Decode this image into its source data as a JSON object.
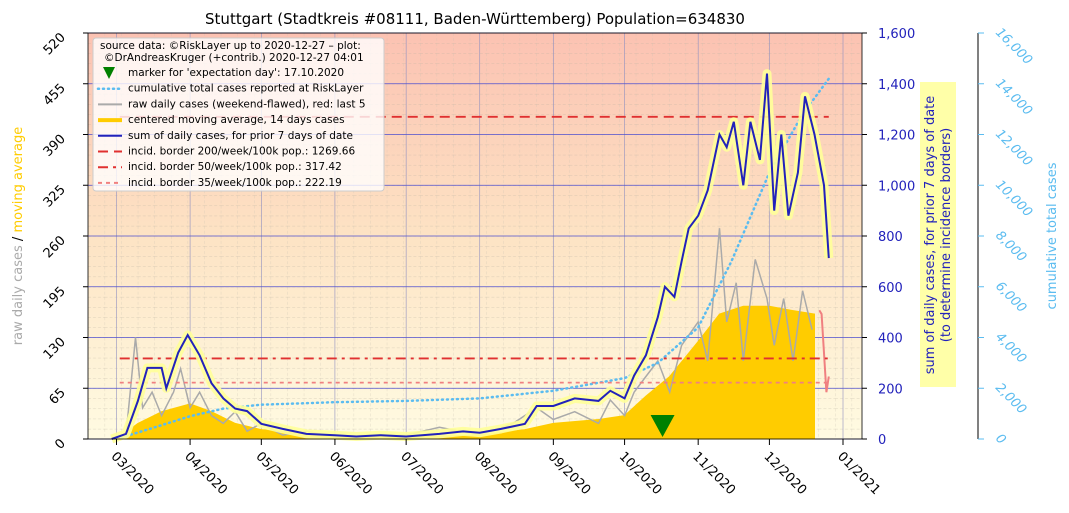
{
  "chart_data": {
    "type": "line",
    "title": "Stuttgart (Stadtkreis #08111, Baden-Württemberg) Population=634830",
    "source_text": [
      "source data: ©RiskLayer up to 2020-12-27 – plot:",
      "©DrAndreasKruger (+contrib.) 2020-12-27 04:01"
    ],
    "xlim": [
      "2020-02-18",
      "2021-01-09"
    ],
    "xticks": [
      {
        "value": "2020-03-01",
        "label": "03/2020"
      },
      {
        "value": "2020-04-01",
        "label": "04/2020"
      },
      {
        "value": "2020-05-01",
        "label": "05/2020"
      },
      {
        "value": "2020-06-01",
        "label": "06/2020"
      },
      {
        "value": "2020-07-01",
        "label": "07/2020"
      },
      {
        "value": "2020-08-01",
        "label": "08/2020"
      },
      {
        "value": "2020-09-01",
        "label": "09/2020"
      },
      {
        "value": "2020-10-01",
        "label": "10/2020"
      },
      {
        "value": "2020-11-01",
        "label": "11/2020"
      },
      {
        "value": "2020-12-01",
        "label": "12/2020"
      },
      {
        "value": "2021-01-01",
        "label": "01/2021"
      }
    ],
    "ylim": [
      0,
      520
    ],
    "yticks": [
      0,
      65,
      130,
      195,
      260,
      325,
      390,
      455,
      520
    ],
    "y2lim": [
      0,
      1600
    ],
    "y2ticks": [
      0,
      200,
      400,
      600,
      800,
      {
        "value": 1000,
        "label": "1,000"
      },
      {
        "value": 1200,
        "label": "1,200"
      },
      {
        "value": 1400,
        "label": "1,400"
      },
      {
        "value": 1600,
        "label": "1,600"
      }
    ],
    "y3lim": [
      0,
      16000
    ],
    "y3ticks": [
      0,
      {
        "value": 2000,
        "label": "2,000"
      },
      {
        "value": 4000,
        "label": "4,000"
      },
      {
        "value": 6000,
        "label": "6,000"
      },
      {
        "value": 8000,
        "label": "8,000"
      },
      {
        "value": 10000,
        "label": "10,000"
      },
      {
        "value": 12000,
        "label": "12,000"
      },
      {
        "value": 14000,
        "label": "14,000"
      },
      {
        "value": 16000,
        "label": "16,000"
      }
    ],
    "ylabel": [
      "raw daily cases",
      "/",
      "moving average"
    ],
    "y2label": [
      "sum of daily cases, for prior 7 days of date",
      "(to determine incidence borders)"
    ],
    "y3label": "cumulative total cases",
    "grid": true,
    "series": [
      {
        "name": "raw daily cases (weekend-flawed), red: last 5",
        "color": "#aaaaaa",
        "highlight_last": 5,
        "highlight_color": "#f08080",
        "axis": "y",
        "style": "line",
        "x": [
          "2020-03-01",
          "2020-03-05",
          "2020-03-09",
          "2020-03-12",
          "2020-03-16",
          "2020-03-20",
          "2020-03-25",
          "2020-03-28",
          "2020-04-01",
          "2020-04-05",
          "2020-04-10",
          "2020-04-15",
          "2020-04-20",
          "2020-04-25",
          "2020-05-01",
          "2020-05-10",
          "2020-05-20",
          "2020-06-01",
          "2020-06-15",
          "2020-07-01",
          "2020-07-15",
          "2020-08-01",
          "2020-08-15",
          "2020-08-25",
          "2020-09-01",
          "2020-09-10",
          "2020-09-20",
          "2020-09-25",
          "2020-10-01",
          "2020-10-05",
          "2020-10-10",
          "2020-10-15",
          "2020-10-20",
          "2020-10-25",
          "2020-11-01",
          "2020-11-05",
          "2020-11-10",
          "2020-11-13",
          "2020-11-17",
          "2020-11-20",
          "2020-11-25",
          "2020-11-30",
          "2020-12-03",
          "2020-12-07",
          "2020-12-11",
          "2020-12-15",
          "2020-12-19",
          "2020-12-22",
          "2020-12-23",
          "2020-12-24",
          "2020-12-25",
          "2020-12-26"
        ],
        "values": [
          2,
          5,
          130,
          40,
          60,
          30,
          60,
          90,
          40,
          60,
          30,
          20,
          35,
          10,
          20,
          5,
          10,
          3,
          5,
          5,
          15,
          5,
          20,
          40,
          25,
          35,
          20,
          50,
          30,
          60,
          80,
          100,
          60,
          120,
          150,
          100,
          270,
          150,
          200,
          100,
          230,
          180,
          120,
          180,
          100,
          190,
          140,
          165,
          160,
          110,
          60,
          80
        ]
      },
      {
        "name": "centered moving average, 14 days cases",
        "color": "#ffcc00",
        "axis": "y",
        "style": "area",
        "x": [
          "2020-03-01",
          "2020-03-10",
          "2020-03-20",
          "2020-04-01",
          "2020-04-10",
          "2020-04-20",
          "2020-05-01",
          "2020-06-01",
          "2020-07-01",
          "2020-08-01",
          "2020-08-20",
          "2020-09-01",
          "2020-09-20",
          "2020-10-01",
          "2020-10-10",
          "2020-10-20",
          "2020-11-01",
          "2020-11-10",
          "2020-11-20",
          "2020-12-01",
          "2020-12-10",
          "2020-12-20"
        ],
        "values": [
          0,
          20,
          35,
          45,
          35,
          20,
          12,
          4,
          3,
          5,
          12,
          20,
          25,
          30,
          55,
          80,
          125,
          160,
          170,
          170,
          165,
          160
        ]
      },
      {
        "name": "sum of daily cases, for prior 7 days of date",
        "color": "#2222bb",
        "glow_color": "#ffff99",
        "axis": "y2",
        "style": "line",
        "x": [
          "2020-02-28",
          "2020-03-05",
          "2020-03-10",
          "2020-03-14",
          "2020-03-20",
          "2020-03-22",
          "2020-03-27",
          "2020-03-31",
          "2020-04-05",
          "2020-04-10",
          "2020-04-15",
          "2020-04-20",
          "2020-04-25",
          "2020-05-01",
          "2020-05-10",
          "2020-05-20",
          "2020-06-01",
          "2020-06-10",
          "2020-06-20",
          "2020-07-01",
          "2020-07-15",
          "2020-07-25",
          "2020-08-01",
          "2020-08-10",
          "2020-08-20",
          "2020-08-25",
          "2020-09-01",
          "2020-09-10",
          "2020-09-20",
          "2020-09-25",
          "2020-10-01",
          "2020-10-05",
          "2020-10-10",
          "2020-10-15",
          "2020-10-18",
          "2020-10-22",
          "2020-10-25",
          "2020-10-28",
          "2020-11-01",
          "2020-11-05",
          "2020-11-10",
          "2020-11-13",
          "2020-11-16",
          "2020-11-20",
          "2020-11-23",
          "2020-11-27",
          "2020-11-30",
          "2020-12-03",
          "2020-12-06",
          "2020-12-09",
          "2020-12-13",
          "2020-12-16",
          "2020-12-20",
          "2020-12-24",
          "2020-12-26"
        ],
        "values": [
          0,
          20,
          150,
          280,
          280,
          200,
          340,
          410,
          330,
          220,
          160,
          120,
          110,
          60,
          40,
          20,
          15,
          10,
          15,
          10,
          20,
          30,
          25,
          40,
          60,
          130,
          130,
          160,
          150,
          190,
          160,
          250,
          330,
          480,
          600,
          560,
          700,
          830,
          880,
          980,
          1200,
          1150,
          1250,
          1000,
          1250,
          1100,
          1440,
          900,
          1200,
          880,
          1050,
          1350,
          1200,
          1000,
          713
        ]
      },
      {
        "name": "cumulative total cases reported at RiskLayer",
        "color": "#5bbcf0",
        "axis": "y3",
        "style": "dotted",
        "x": [
          "2020-03-01",
          "2020-03-15",
          "2020-04-01",
          "2020-04-15",
          "2020-05-01",
          "2020-06-01",
          "2020-07-01",
          "2020-08-01",
          "2020-09-01",
          "2020-10-01",
          "2020-10-15",
          "2020-11-01",
          "2020-11-15",
          "2020-12-01",
          "2020-12-15",
          "2020-12-26"
        ],
        "values": [
          0,
          400,
          900,
          1200,
          1350,
          1450,
          1500,
          1600,
          1900,
          2400,
          3000,
          4400,
          7000,
          10500,
          12800,
          14200
        ]
      }
    ],
    "reference_lines": [
      {
        "name": "incid. border 200/week/100k pop.: 1269.66",
        "value": 1269.66,
        "color": "#e03030",
        "axis": "y2"
      },
      {
        "name": "incid. border 50/week/100k pop.: 317.42",
        "value": 317.42,
        "color": "#e03030",
        "axis": "y2"
      },
      {
        "name": "incid. border 35/week/100k pop.: 222.19",
        "value": 222.19,
        "color": "#f08080",
        "axis": "y2"
      }
    ],
    "marker": {
      "name": "marker for 'expectation day': 17.10.2020",
      "x": "2020-10-17",
      "color": "#008000"
    }
  }
}
